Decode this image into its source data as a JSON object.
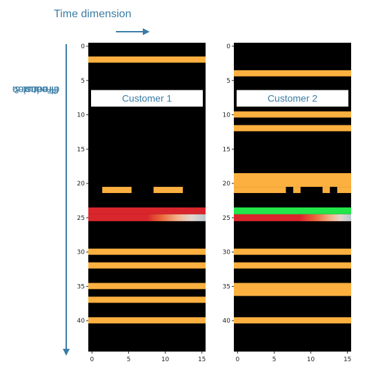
{
  "annotations": {
    "time_axis_label": "Time dimension",
    "product_axis_line1": "Product &",
    "product_axis_line2": "Feature",
    "product_axis_line3": "dimension"
  },
  "colors": {
    "background": "#000000",
    "orange": "#fbb040",
    "red": "#d9262c",
    "green": "#22e64a",
    "accent": "#3a7ca5"
  },
  "chart_data": {
    "type": "heatmap",
    "xticks": [
      "0",
      "5",
      "10",
      "15"
    ],
    "yticks": [
      "0",
      "5",
      "10",
      "15",
      "20",
      "25",
      "30",
      "35",
      "40"
    ],
    "xlim": [
      -0.5,
      15.5
    ],
    "ylim": [
      -0.5,
      44.5
    ],
    "panels": [
      {
        "title": "Customer 1",
        "bands": [
          {
            "kind": "orange",
            "row_start": 1.5,
            "row_end": 2.4,
            "x_start": -0.5,
            "x_end": 15.5
          },
          {
            "kind": "orange",
            "row_start": 20.5,
            "row_end": 21.4,
            "x_start": 1.4,
            "x_end": 5.4
          },
          {
            "kind": "orange",
            "row_start": 20.5,
            "row_end": 21.4,
            "x_start": 8.4,
            "x_end": 12.4
          },
          {
            "kind": "red",
            "row_start": 23.5,
            "row_end": 24.5,
            "x_start": -0.5,
            "x_end": 15.5
          },
          {
            "kind": "gradient",
            "row_start": 24.5,
            "row_end": 25.5,
            "x_start": -0.5,
            "x_end": 15.5
          },
          {
            "kind": "orange",
            "row_start": 29.5,
            "row_end": 30.4,
            "x_start": -0.5,
            "x_end": 15.5
          },
          {
            "kind": "orange",
            "row_start": 31.5,
            "row_end": 32.4,
            "x_start": -0.5,
            "x_end": 15.5
          },
          {
            "kind": "orange",
            "row_start": 34.5,
            "row_end": 35.4,
            "x_start": -0.5,
            "x_end": 15.5
          },
          {
            "kind": "orange",
            "row_start": 36.5,
            "row_end": 37.4,
            "x_start": -0.5,
            "x_end": 15.5
          },
          {
            "kind": "orange",
            "row_start": 39.5,
            "row_end": 40.4,
            "x_start": -0.5,
            "x_end": 15.5
          }
        ]
      },
      {
        "title": "Customer 2",
        "bands": [
          {
            "kind": "orange",
            "row_start": 3.5,
            "row_end": 4.4,
            "x_start": -0.5,
            "x_end": 15.5
          },
          {
            "kind": "orange",
            "row_start": 9.5,
            "row_end": 10.4,
            "x_start": -0.5,
            "x_end": 15.5
          },
          {
            "kind": "orange",
            "row_start": 11.5,
            "row_end": 12.4,
            "x_start": -0.5,
            "x_end": 15.5
          },
          {
            "kind": "orange",
            "row_start": 18.5,
            "row_end": 20.5,
            "x_start": -0.5,
            "x_end": 15.5
          },
          {
            "kind": "orange",
            "row_start": 20.5,
            "row_end": 21.4,
            "x_start": -0.5,
            "x_end": 6.6
          },
          {
            "kind": "orange",
            "row_start": 20.5,
            "row_end": 21.4,
            "x_start": 7.6,
            "x_end": 8.6
          },
          {
            "kind": "orange",
            "row_start": 20.5,
            "row_end": 21.4,
            "x_start": 11.6,
            "x_end": 12.6
          },
          {
            "kind": "orange",
            "row_start": 20.5,
            "row_end": 21.4,
            "x_start": 13.6,
            "x_end": 15.5
          },
          {
            "kind": "green",
            "row_start": 23.5,
            "row_end": 24.5,
            "x_start": -0.5,
            "x_end": 15.5
          },
          {
            "kind": "red",
            "row_start": 24.5,
            "row_end": 25.5,
            "x_start": -0.5,
            "x_end": 15.5
          },
          {
            "kind": "gradient",
            "row_start": 24.5,
            "row_end": 25.5,
            "x_start": 8.5,
            "x_end": 15.5
          },
          {
            "kind": "orange",
            "row_start": 29.5,
            "row_end": 30.4,
            "x_start": -0.5,
            "x_end": 15.5
          },
          {
            "kind": "orange",
            "row_start": 31.5,
            "row_end": 32.4,
            "x_start": -0.5,
            "x_end": 15.5
          },
          {
            "kind": "orange",
            "row_start": 34.5,
            "row_end": 36.4,
            "x_start": -0.5,
            "x_end": 15.5
          },
          {
            "kind": "orange",
            "row_start": 39.5,
            "row_end": 40.4,
            "x_start": -0.5,
            "x_end": 15.5
          }
        ]
      }
    ]
  }
}
